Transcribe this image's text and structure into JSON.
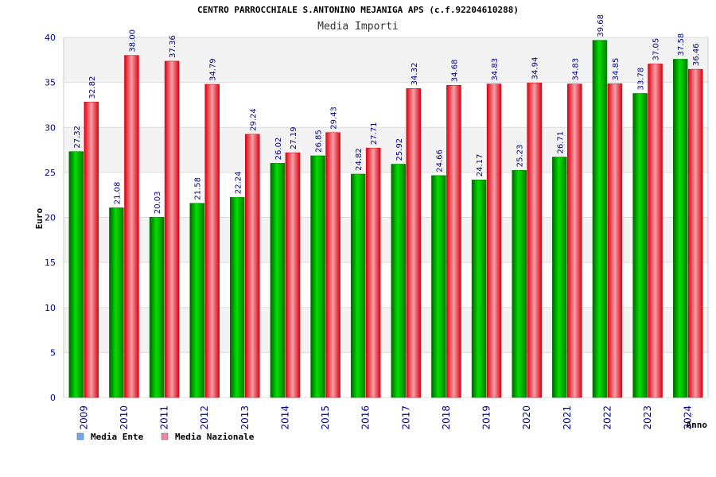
{
  "chart_data": {
    "type": "bar",
    "title": "CENTRO PARROCCHIALE S.ANTONINO MEJANIGA APS (c.f.92204610288)",
    "subtitle": "Media Importi",
    "xlabel": "Anno",
    "ylabel": "Euro",
    "ylim": [
      0,
      40
    ],
    "yticks": [
      0,
      5,
      10,
      15,
      20,
      25,
      30,
      35,
      40
    ],
    "grid": true,
    "legend_position": "bottom-left",
    "categories": [
      "2009",
      "2010",
      "2011",
      "2012",
      "2013",
      "2014",
      "2015",
      "2016",
      "2017",
      "2018",
      "2019",
      "2020",
      "2021",
      "2022",
      "2023",
      "2024"
    ],
    "series": [
      {
        "name": "Media Ente",
        "color": "#00c000",
        "legend_color": "#6fa8f0",
        "values": [
          27.32,
          21.08,
          20.03,
          21.58,
          22.24,
          26.02,
          26.85,
          24.82,
          25.92,
          24.66,
          24.17,
          25.23,
          26.71,
          39.68,
          33.78,
          37.58
        ],
        "labels": [
          "27.32",
          "21.08",
          "20.03",
          "21.58",
          "22.24",
          "26.02",
          "26.85",
          "24.82",
          "25.92",
          "24.66",
          "24.17",
          "25.23",
          "26.71",
          "39.68",
          "33.78",
          "37.58"
        ]
      },
      {
        "name": "Media Nazionale",
        "color": "#e8202a",
        "legend_color": "#e888b0",
        "values": [
          32.82,
          38.0,
          37.36,
          34.79,
          29.24,
          27.19,
          29.43,
          27.71,
          34.32,
          34.68,
          34.83,
          34.94,
          34.83,
          34.85,
          37.05,
          36.46
        ],
        "labels": [
          "32.82",
          "38.00",
          "37.36",
          "34.79",
          "29.24",
          "27.19",
          "29.43",
          "27.71",
          "34.32",
          "34.68",
          "34.83",
          "34.94",
          "34.83",
          "34.85",
          "37.05",
          "36.46"
        ]
      }
    ]
  }
}
